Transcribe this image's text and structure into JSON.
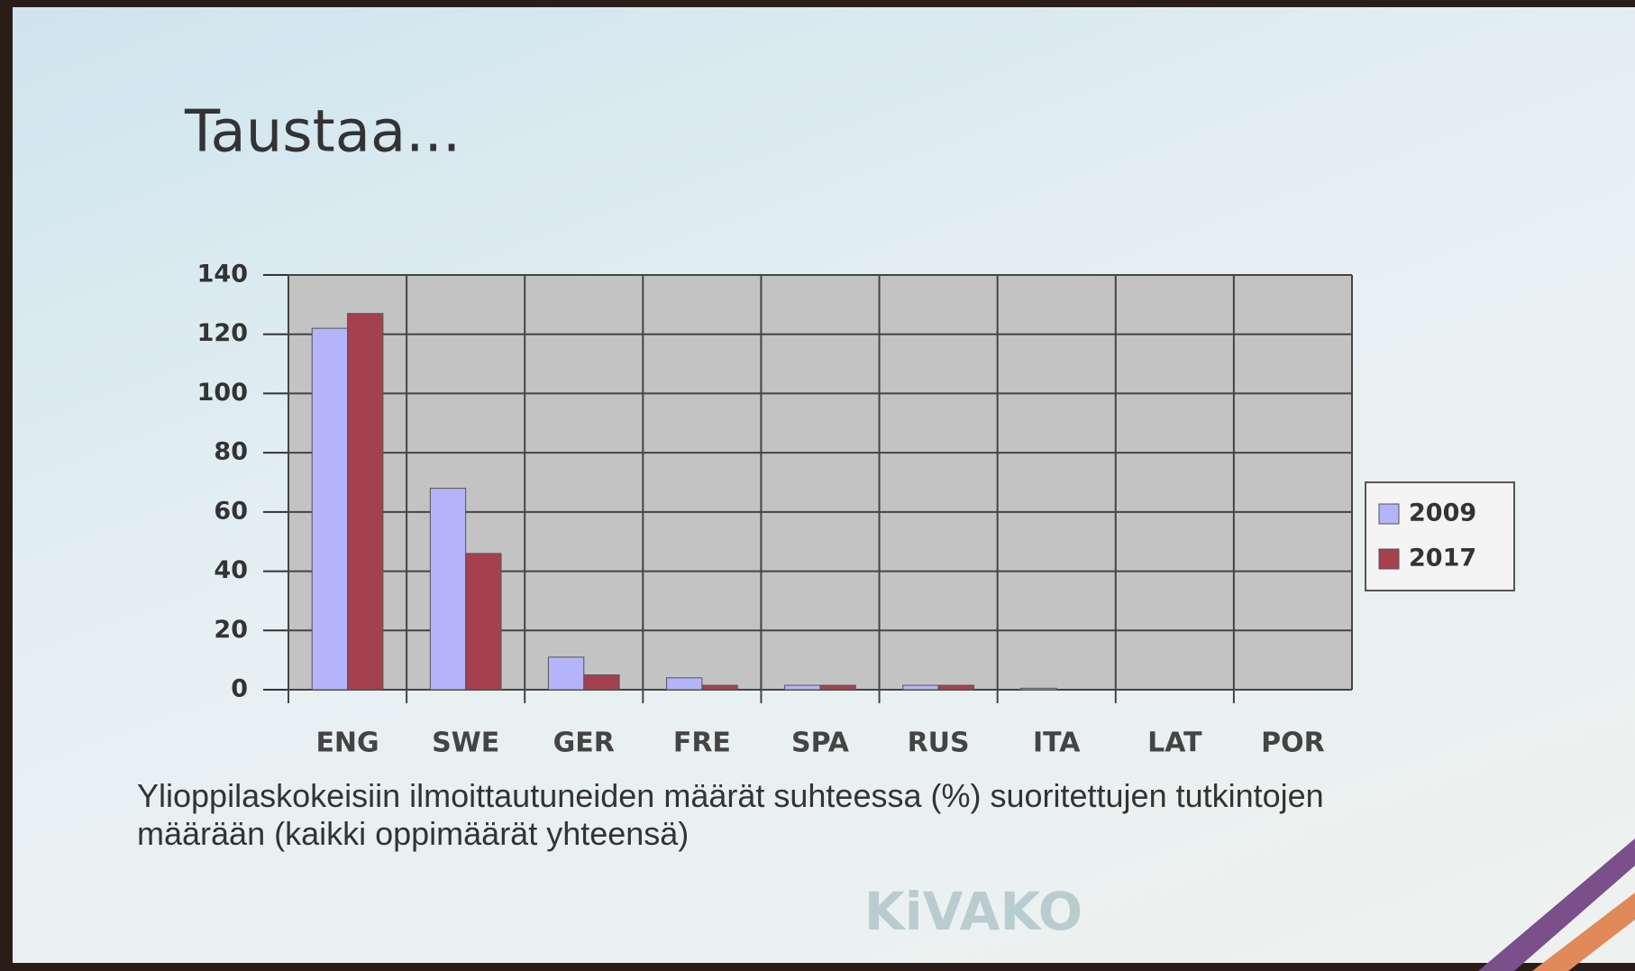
{
  "chart_data": {
    "type": "bar",
    "title": "Taustaa...",
    "caption": "Ylioppilaskokeisiin ilmoittautuneiden määrät suhteessa (%) suoritettujen tutkintojen määrään (kaikki oppimäärät yhteensä)",
    "logo": "KiVAKO",
    "categories": [
      "ENG",
      "SWE",
      "GER",
      "FRE",
      "SPA",
      "RUS",
      "ITA",
      "LAT",
      "POR"
    ],
    "series": [
      {
        "name": "2009",
        "color": "#b4b4fa",
        "values": [
          122,
          68,
          11,
          4,
          1.5,
          1.5,
          0.5,
          0,
          0
        ]
      },
      {
        "name": "2017",
        "color": "#a5404f",
        "values": [
          127,
          46,
          5,
          1.5,
          1.5,
          1.5,
          0,
          0,
          0
        ]
      }
    ],
    "ylim": [
      0,
      140
    ],
    "yticks": [
      0,
      20,
      40,
      60,
      80,
      100,
      120,
      140
    ],
    "grid": true,
    "legend": "right"
  }
}
